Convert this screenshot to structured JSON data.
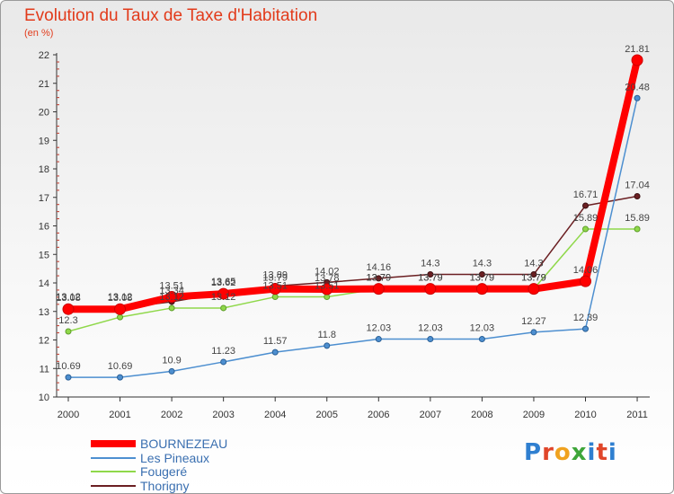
{
  "colors": {
    "title": "#e23b1b",
    "bournezeau": "#ff0000",
    "les_pineaux": "#4d8fd0",
    "fougere": "#8fd84a",
    "thorigny": "#6b1f22",
    "logo": [
      "#2f7fd0",
      "#e0462a",
      "#f0a21f",
      "#3ea63a"
    ]
  },
  "chart_data": {
    "type": "line",
    "title": "Evolution du Taux de Taxe d'Habitation",
    "subtitle": "(en %)",
    "xlabel": "",
    "ylabel": "",
    "x": [
      "2000",
      "2001",
      "2002",
      "2003",
      "2004",
      "2005",
      "2006",
      "2007",
      "2008",
      "2009",
      "2010",
      "2011"
    ],
    "ylim": [
      10,
      22
    ],
    "yticks": [
      10,
      11,
      12,
      13,
      14,
      15,
      16,
      17,
      18,
      19,
      20,
      21,
      22
    ],
    "grid": false,
    "legend_position": "bottom-left",
    "series": [
      {
        "name": "BOURNEZEAU",
        "values": [
          13.08,
          13.08,
          13.51,
          13.62,
          13.79,
          13.78,
          13.79,
          13.79,
          13.79,
          13.79,
          14.06,
          21.81
        ],
        "labels": [
          "13.08",
          "13.08",
          "13.51",
          "13.62",
          "13.79",
          "13.78",
          "13.79",
          "13.79",
          "13.79",
          "13.79",
          "14.06",
          "21.81"
        ],
        "color": "#ff0000"
      },
      {
        "name": "Les Pineaux",
        "values": [
          10.69,
          10.69,
          10.9,
          11.23,
          11.57,
          11.8,
          12.03,
          12.03,
          12.03,
          12.27,
          12.39,
          20.48
        ],
        "labels": [
          "10.69",
          "10.69",
          "10.9",
          "11.23",
          "11.57",
          "11.8",
          "12.03",
          "12.03",
          "12.03",
          "12.27",
          "12.39",
          "20.48"
        ],
        "color": "#4d8fd0"
      },
      {
        "name": "Fougeré",
        "values": [
          12.3,
          12.8,
          13.12,
          13.12,
          13.51,
          13.51,
          13.79,
          13.79,
          13.79,
          13.79,
          15.89,
          15.89
        ],
        "labels": [
          "12.3",
          "",
          "13.12",
          "13.12",
          "13.51",
          "13.51",
          "13.79",
          "13.79",
          "13.79",
          "13.79",
          "15.89",
          "15.89"
        ],
        "color": "#8fd84a"
      },
      {
        "name": "Thorigny",
        "values": [
          13.12,
          13.12,
          13.34,
          13.65,
          13.89,
          14.02,
          14.16,
          14.3,
          14.3,
          14.3,
          16.71,
          17.04
        ],
        "labels": [
          "13.12",
          "13.12",
          "13.34",
          "13.65",
          "13.89",
          "14.02",
          "14.16",
          "14.3",
          "14.3",
          "14.3",
          "16.71",
          "17.04"
        ],
        "color": "#6b1f22"
      }
    ]
  },
  "logo": {
    "p": "P",
    "r": "r",
    "o": "o",
    "x": "x",
    "i": "i",
    "t": "t",
    "i2": "i"
  }
}
